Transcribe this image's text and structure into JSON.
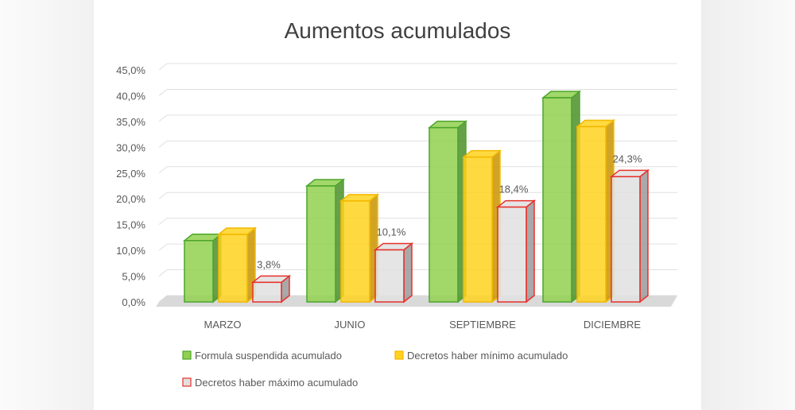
{
  "chart_data": {
    "type": "bar",
    "title": "Aumentos acumulados",
    "categories": [
      "MARZO",
      "JUNIO",
      "SEPTIEMBRE",
      "DICIEMBRE"
    ],
    "series": [
      {
        "name": "Formula suspendida acumulado",
        "values": [
          11.9,
          22.5,
          33.8,
          39.6
        ]
      },
      {
        "name": "Decretos haber mínimo acumulado",
        "values": [
          13.1,
          19.6,
          28.1,
          34.0
        ]
      },
      {
        "name": "Decretos haber máximo acumulado",
        "values": [
          3.8,
          10.1,
          18.4,
          24.3
        ],
        "data_labels": [
          "3,8%",
          "10,1%",
          "18,4%",
          "24,3%"
        ]
      }
    ],
    "y_ticks": [
      "0,0%",
      "5,0%",
      "10,0%",
      "15,0%",
      "20,0%",
      "25,0%",
      "30,0%",
      "35,0%",
      "40,0%",
      "45,0%"
    ],
    "ylim": [
      0,
      45
    ],
    "grid": true,
    "legend_position": "bottom",
    "colors": {
      "series1_fill": "#92d050",
      "series1_edge": "#4ca62c",
      "series1_side": "#4e8f2a",
      "series2_fill": "#ffd21f",
      "series2_edge": "#f2b800",
      "series2_side": "#c99400",
      "series3_fill": "#e0e0e0",
      "series3_edge": "#e8302a",
      "series3_side": "#9a9a9a"
    }
  }
}
